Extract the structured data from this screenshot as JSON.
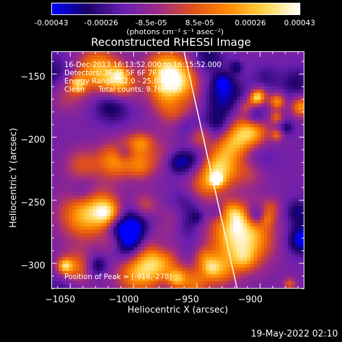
{
  "colorbar": {
    "ticks": [
      "-0.00043",
      "-0.00026",
      "-8.5e-05",
      "8.5e-05",
      "0.00026",
      "0.00043"
    ],
    "units": "(photons cm⁻² s⁻¹ asec⁻²)"
  },
  "chart_data": {
    "type": "heatmap",
    "title": "Reconstructed RHESSI Image",
    "xlabel": "Heliocentric X (arcsec)",
    "ylabel": "Heliocentric Y (arcsec)",
    "xlim": [
      -1065,
      -865
    ],
    "ylim": [
      -320,
      -132
    ],
    "xticks": [
      "−1050",
      "−1000",
      "−950",
      "−900"
    ],
    "yticks": [
      "−150",
      "−200",
      "−250",
      "−300"
    ],
    "colorscale": {
      "min": -0.00043,
      "max": 0.00043,
      "colors": [
        "#0000ff",
        "#1a0066",
        "#6a1fb0",
        "#9b2a8a",
        "#e0501a",
        "#ff8c00",
        "#ffd54a",
        "#ffffff"
      ]
    },
    "limb_line": {
      "x": [
        -960,
        -918
      ],
      "y": [
        -132,
        -320
      ]
    },
    "peak": {
      "x": -916,
      "y": -278
    }
  },
  "annotations": {
    "line1": "16-Dec-2013 16:13:52.000 to 16:15:52.000",
    "line2": "Detectors: 3F 4F 5F 6F 7F 8F 9F",
    "line3": "Energy Range: 12.0 - 25.0 keV",
    "line4": "Clean      Total counts: 9.76E+03",
    "peak": "Position of Peak = [-916,-278]"
  },
  "timestamp": "19-May-2022 02:10"
}
